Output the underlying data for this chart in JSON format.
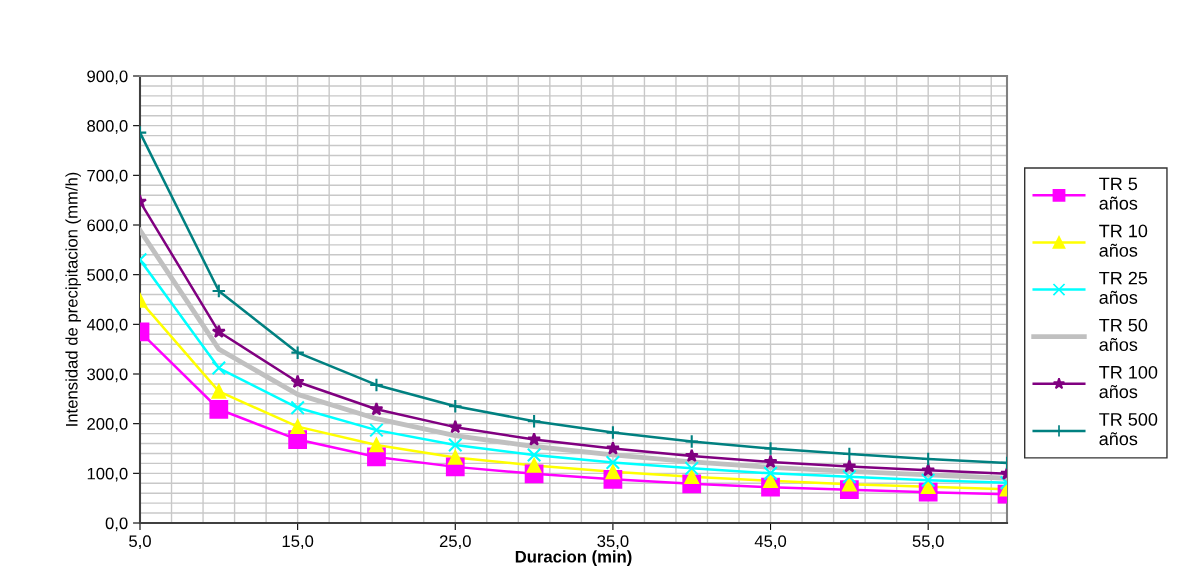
{
  "chart_data": {
    "type": "line",
    "xlabel": "Duracion (min)",
    "ylabel": "Intensidad de precipitacion (mm/h)",
    "x": [
      5,
      10,
      15,
      20,
      25,
      30,
      35,
      40,
      45,
      50,
      55,
      60
    ],
    "series": [
      {
        "name": "TR 5 años",
        "color": "#ff00ff",
        "marker": "square",
        "values": [
          385,
          229,
          168,
          133,
          113,
          99,
          88,
          79,
          72,
          67,
          62,
          58
        ]
      },
      {
        "name": "TR 10 años",
        "color": "#ffff00",
        "marker": "triangle",
        "values": [
          448,
          265,
          194,
          157,
          132,
          116,
          103,
          93,
          85,
          78,
          73,
          68
        ]
      },
      {
        "name": "TR 25 años",
        "color": "#00ffff",
        "marker": "cross",
        "values": [
          530,
          312,
          232,
          187,
          157,
          137,
          122,
          110,
          100,
          93,
          86,
          81
        ]
      },
      {
        "name": "TR 50 años",
        "color": "#c0c0c0",
        "marker": "none",
        "values": [
          589,
          350,
          259,
          210,
          176,
          154,
          137,
          123,
          112,
          104,
          97,
          90
        ]
      },
      {
        "name": "TR 100 años",
        "color": "#800080",
        "marker": "star",
        "values": [
          647,
          385,
          284,
          229,
          193,
          168,
          150,
          135,
          123,
          114,
          106,
          99
        ]
      },
      {
        "name": "TR 500 años",
        "color": "#008080",
        "marker": "plus",
        "values": [
          786,
          467,
          343,
          278,
          235,
          205,
          182,
          164,
          150,
          139,
          129,
          121
        ]
      }
    ],
    "xlim": [
      5,
      60
    ],
    "ylim": [
      0,
      900
    ],
    "xticks": [
      {
        "value": 5,
        "label": "5,0"
      },
      {
        "value": 15,
        "label": "15,0"
      },
      {
        "value": 25,
        "label": "25,0"
      },
      {
        "value": 35,
        "label": "35,0"
      },
      {
        "value": 45,
        "label": "45,0"
      },
      {
        "value": 55,
        "label": "55,0"
      }
    ],
    "yticks": [
      {
        "value": 0,
        "label": "0,0"
      },
      {
        "value": 100,
        "label": "100,0"
      },
      {
        "value": 200,
        "label": "200,0"
      },
      {
        "value": 300,
        "label": "300,0"
      },
      {
        "value": 400,
        "label": "400,0"
      },
      {
        "value": 500,
        "label": "500,0"
      },
      {
        "value": 600,
        "label": "600,0"
      },
      {
        "value": 700,
        "label": "700,0"
      },
      {
        "value": 800,
        "label": "800,0"
      },
      {
        "value": 900,
        "label": "900,0"
      }
    ],
    "grid": true,
    "legend": "right",
    "line_style": "solid"
  }
}
